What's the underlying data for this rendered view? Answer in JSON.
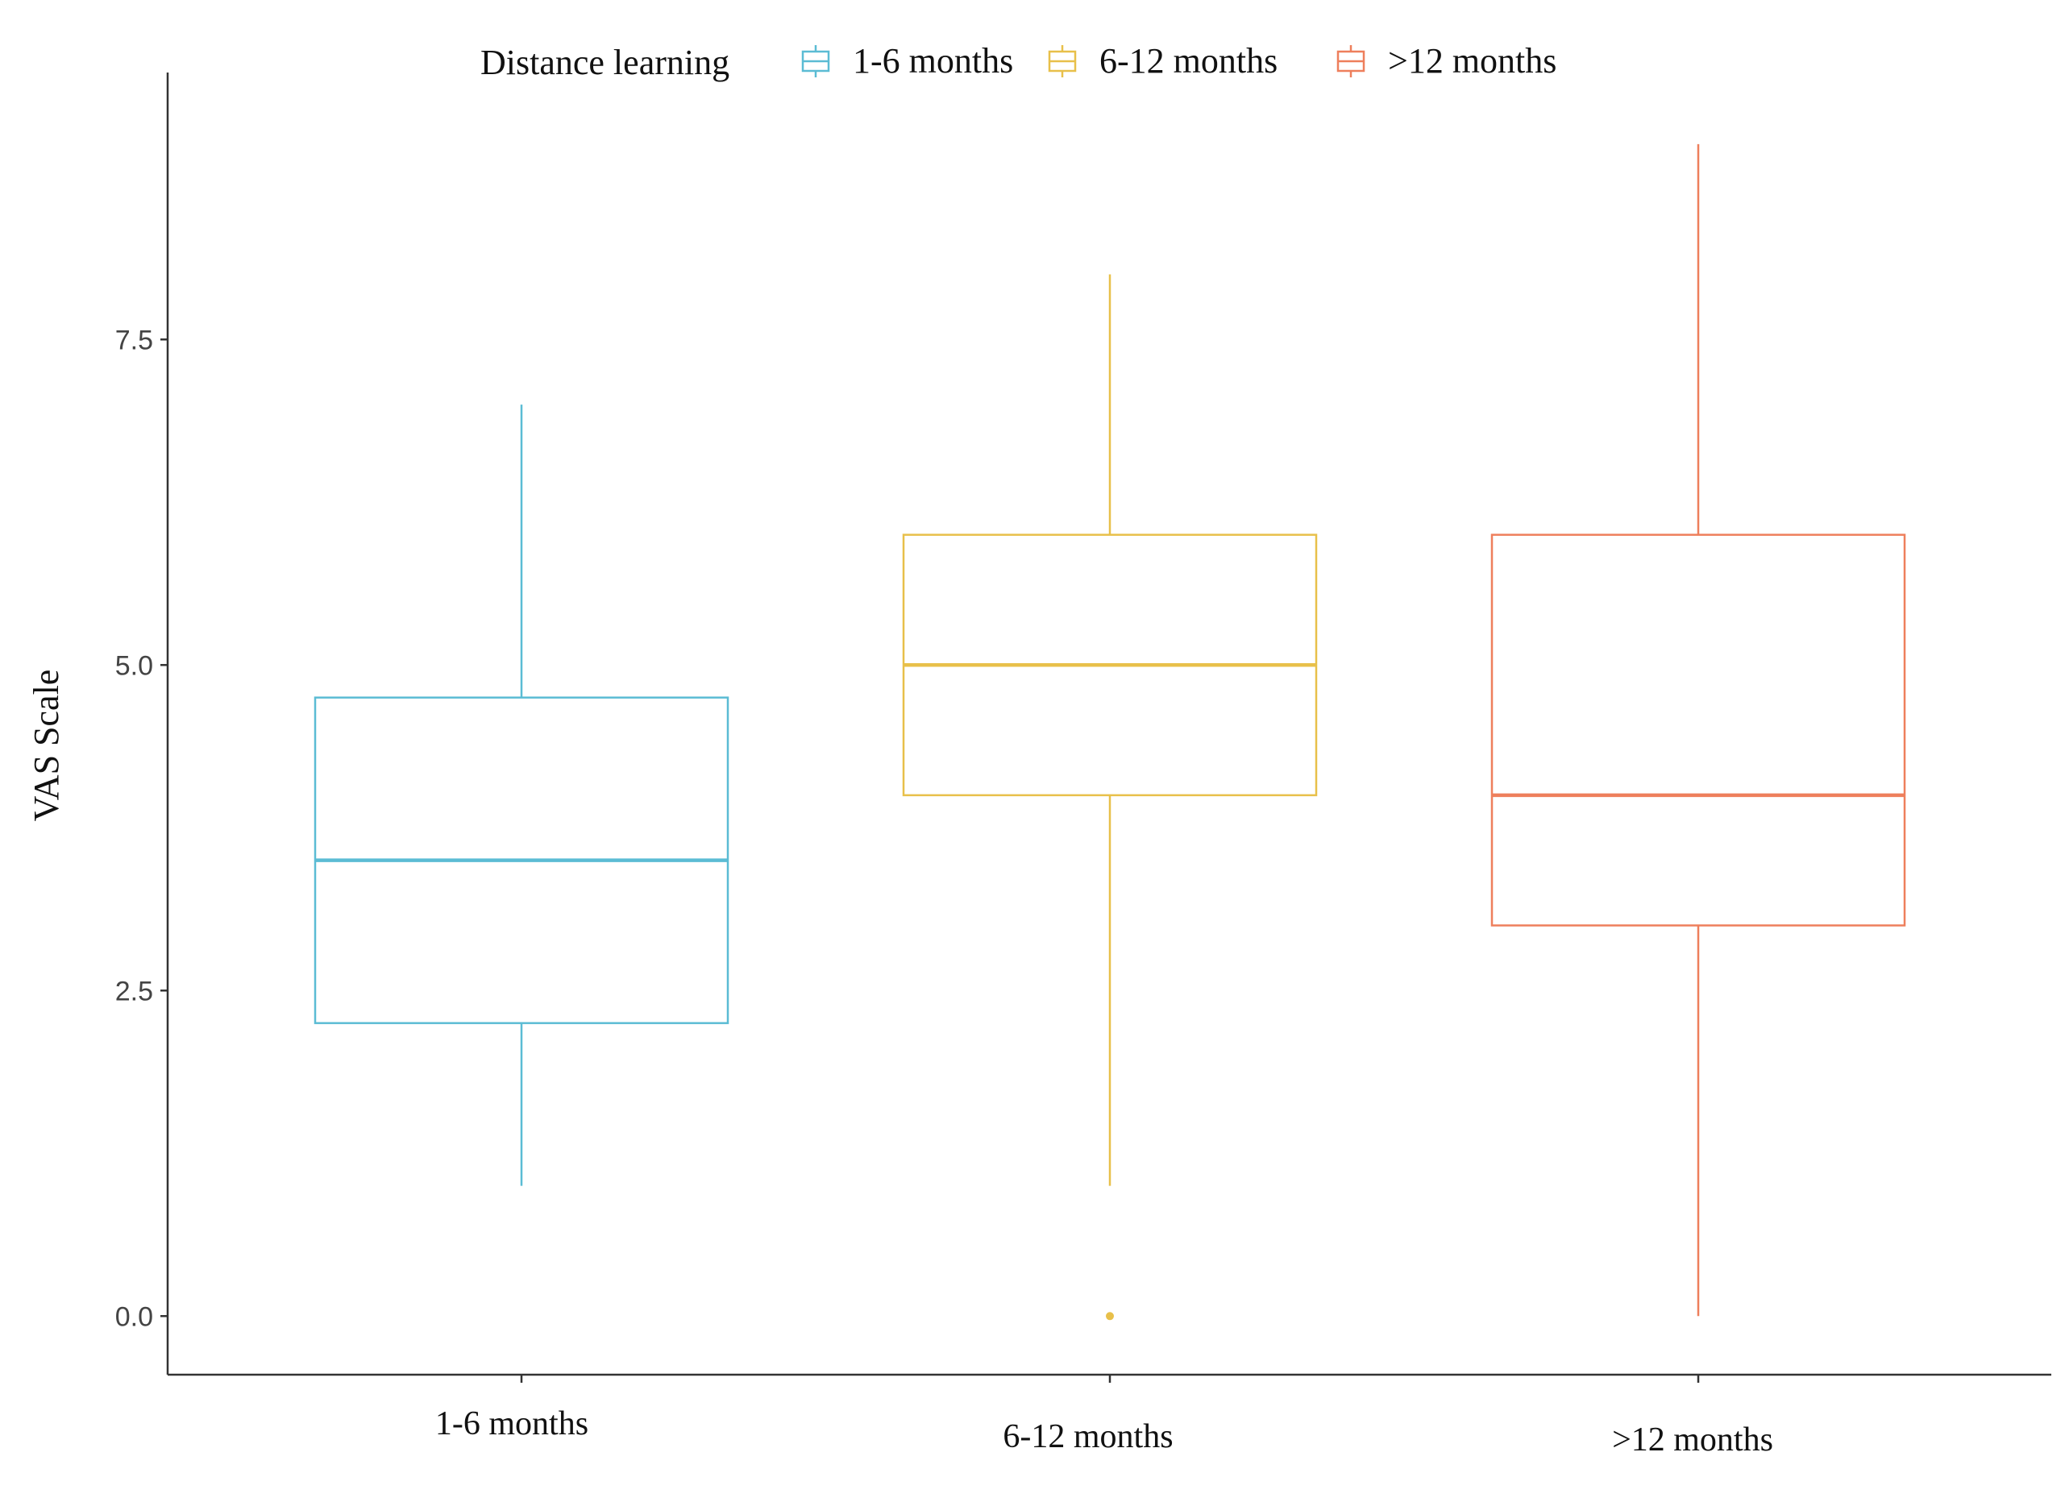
{
  "chart_data": {
    "type": "box",
    "legend_title": "Distance learning",
    "legend_position": "top",
    "ylabel": "VAS Scale",
    "xlabel": "",
    "ylim": [
      -0.45,
      9.55
    ],
    "yticks": [
      0.0,
      2.5,
      5.0,
      7.5
    ],
    "ytick_labels": [
      "0.0",
      "2.5",
      "5.0",
      "7.5"
    ],
    "grid": false,
    "categories": [
      "1-6 months",
      "6-12 months",
      ">12 months"
    ],
    "series": [
      {
        "name": "1-6 months",
        "color": "#5bbcd4",
        "whisker_low": 1,
        "q1": 2.25,
        "median": 3.5,
        "q3": 4.75,
        "whisker_high": 7,
        "outliers": []
      },
      {
        "name": "6-12 months",
        "color": "#e8c04a",
        "whisker_low": 1,
        "q1": 4,
        "median": 5,
        "q3": 6,
        "whisker_high": 8,
        "outliers": [
          0
        ]
      },
      {
        "name": ">12 months",
        "color": "#ee7f5c",
        "whisker_low": 0,
        "q1": 3,
        "median": 4,
        "q3": 6,
        "whisker_high": 9,
        "outliers": []
      }
    ]
  }
}
